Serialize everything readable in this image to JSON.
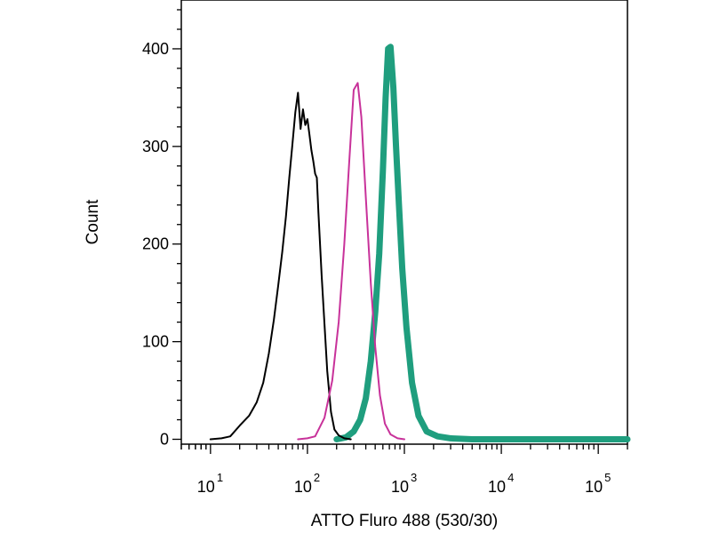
{
  "chart_data": {
    "type": "line",
    "title": "",
    "xlabel": "ATTO Fluro 488 (530/30)",
    "ylabel": "Count",
    "x_scale": "log",
    "xlim": [
      5,
      200000
    ],
    "ylim": [
      -5,
      450
    ],
    "grid": false,
    "legend": "none",
    "x_ticks": [
      {
        "value": 10,
        "base": "10",
        "exp": "1"
      },
      {
        "value": 100,
        "base": "10",
        "exp": "2"
      },
      {
        "value": 1000,
        "base": "10",
        "exp": "3"
      },
      {
        "value": 10000,
        "base": "10",
        "exp": "4"
      },
      {
        "value": 100000,
        "base": "10",
        "exp": "5"
      }
    ],
    "y_ticks": [
      {
        "value": 0,
        "label": "0"
      },
      {
        "value": 100,
        "label": "100"
      },
      {
        "value": 200,
        "label": "200"
      },
      {
        "value": 300,
        "label": "300"
      },
      {
        "value": 400,
        "label": "400"
      }
    ],
    "series": [
      {
        "color": "#000000",
        "stroke": "thin",
        "x": [
          10,
          13,
          16,
          20,
          25,
          30,
          35,
          40,
          45,
          50,
          55,
          60,
          65,
          70,
          75,
          80,
          85,
          90,
          95,
          100,
          105,
          110,
          115,
          120,
          125,
          130,
          140,
          150,
          160,
          175,
          190,
          210,
          240,
          280
        ],
        "y": [
          0,
          1,
          3,
          14,
          24,
          38,
          58,
          88,
          122,
          158,
          192,
          228,
          268,
          302,
          335,
          355,
          318,
          338,
          322,
          328,
          312,
          296,
          285,
          272,
          268,
          232,
          168,
          118,
          70,
          28,
          10,
          4,
          1,
          0
        ]
      },
      {
        "color": "#c8329a",
        "stroke": "medium",
        "x": [
          80,
          100,
          120,
          150,
          180,
          210,
          240,
          270,
          300,
          330,
          360,
          400,
          450,
          500,
          560,
          630,
          720,
          850,
          1000
        ],
        "y": [
          0,
          1,
          3,
          22,
          60,
          120,
          200,
          285,
          358,
          365,
          330,
          248,
          160,
          95,
          45,
          16,
          5,
          1,
          0
        ]
      },
      {
        "color": "#1f9e7e",
        "stroke": "thick",
        "x": [
          200,
          250,
          300,
          350,
          400,
          450,
          500,
          550,
          600,
          640,
          680,
          720,
          770,
          820,
          880,
          950,
          1050,
          1200,
          1400,
          1700,
          2200,
          3000,
          5000,
          200000
        ],
        "y": [
          0,
          2,
          8,
          20,
          42,
          80,
          130,
          190,
          275,
          350,
          400,
          402,
          360,
          300,
          240,
          175,
          115,
          58,
          24,
          8,
          3,
          1,
          0,
          0
        ]
      }
    ]
  }
}
